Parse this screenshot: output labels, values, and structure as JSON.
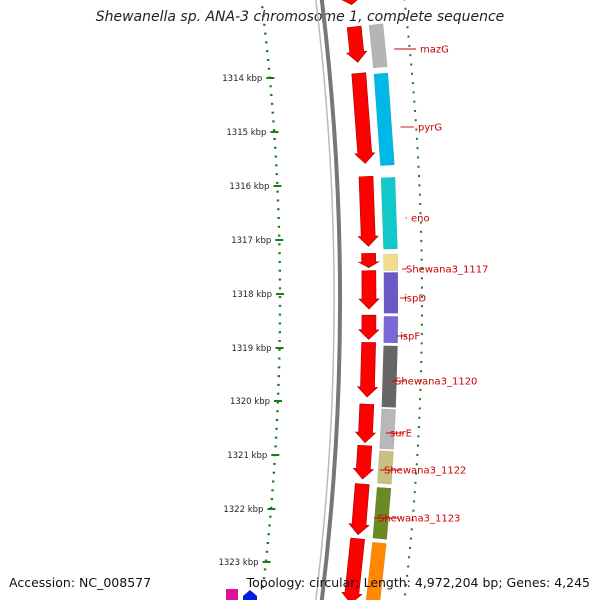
{
  "title": "Shewanella sp. ANA-3 chromosome 1, complete sequence",
  "accession_label": "Accession: NC_008577",
  "summary_label": "Topology: circular; Length: 4,972,204 bp; Genes: 4,245",
  "colors": {
    "forward_arrow": "#ff0000",
    "backbone": "#777777",
    "tick": "#1a7a1a",
    "gene_label": "#cc0000"
  },
  "kbp_ticks": [
    "1314 kbp",
    "1315 kbp",
    "1316 kbp",
    "1317 kbp",
    "1318 kbp",
    "1319 kbp",
    "1320 kbp",
    "1321 kbp",
    "1322 kbp",
    "1323 kbp"
  ],
  "genes": [
    {
      "name": "mazG",
      "color": "#b5b5b5"
    },
    {
      "name": "pyrG",
      "color": "#00b8e8"
    },
    {
      "name": "eno",
      "color": "#12c8c8"
    },
    {
      "name": "Shewana3_1117",
      "color": "#f0dc8c"
    },
    {
      "name": "ispD",
      "color": "#6a58c8"
    },
    {
      "name": "ispF",
      "color": "#7a6ad8"
    },
    {
      "name": "Shewana3_1120",
      "color": "#666666"
    },
    {
      "name": "surE",
      "color": "#b8b8b8"
    },
    {
      "name": "Shewana3_1122",
      "color": "#c8c080"
    },
    {
      "name": "Shewana3_1123",
      "color": "#6a8a22"
    },
    {
      "name": "",
      "color": "#ff8800"
    }
  ]
}
